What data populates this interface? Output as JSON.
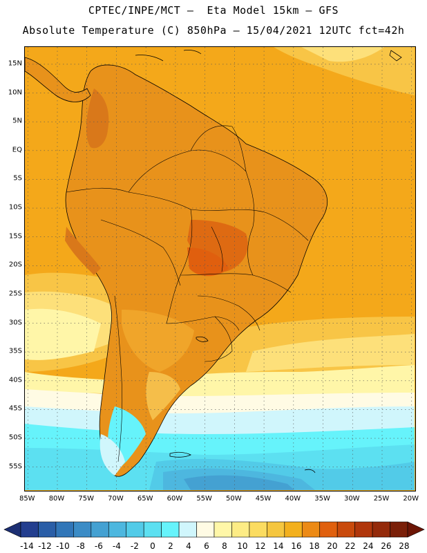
{
  "header": {
    "line1": "CPTEC/INPE/MCT –  Eta Model 15km – GFS",
    "line2": "Absolute Temperature (C) 850hPa – 15/04/2021 12UTC fct=42h"
  },
  "map": {
    "lat_labels": [
      "15N",
      "10N",
      "5N",
      "EQ",
      "5S",
      "10S",
      "15S",
      "20S",
      "25S",
      "30S",
      "35S",
      "40S",
      "45S",
      "50S",
      "55S"
    ],
    "lon_labels": [
      "85W",
      "80W",
      "75W",
      "70W",
      "65W",
      "60W",
      "55W",
      "50W",
      "45W",
      "40W",
      "35W",
      "30W",
      "25W",
      "20W"
    ],
    "lat_range": [
      18,
      -59
    ],
    "lon_range": [
      -85.5,
      -19.5
    ],
    "grid": "dotted"
  },
  "legend": {
    "labels": [
      "-14",
      "-12",
      "-10",
      "-8",
      "-6",
      "-4",
      "-2",
      "0",
      "2",
      "4",
      "6",
      "8",
      "10",
      "12",
      "14",
      "16",
      "18",
      "20",
      "22",
      "24",
      "26",
      "28"
    ],
    "colors": [
      "#233e8f",
      "#2a5ea7",
      "#3176b8",
      "#3b8cc6",
      "#44a1d2",
      "#4db7df",
      "#52cbe8",
      "#5ce0f1",
      "#66f3fb",
      "#d0f6fc",
      "#fffbe4",
      "#fff7a8",
      "#fdec85",
      "#fbdc60",
      "#f5c63f",
      "#f3b01d",
      "#ec8a15",
      "#e0600e",
      "#c94a0c",
      "#b0360b",
      "#942a0a",
      "#7a1f08"
    ],
    "under_color": "#1c2f73",
    "over_color": "#6c1505"
  }
}
